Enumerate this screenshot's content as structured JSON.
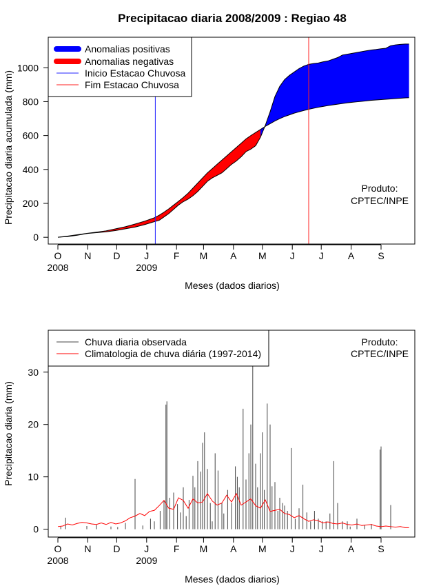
{
  "chart_data": [
    {
      "type": "area",
      "title": "Precipitacao diaria 2008/2009 : Regiao 48",
      "xlabel": "Meses (dados diarios)",
      "ylabel": "Precipitacao diaria acumulada (mm)",
      "x_unit": "days since 2008-10-01",
      "xlim": [
        -10,
        370
      ],
      "ylim": [
        -40,
        1180
      ],
      "yticks": [
        0,
        200,
        400,
        600,
        800,
        1000
      ],
      "month_ticks": [
        0,
        31,
        61,
        92,
        123,
        151,
        182,
        212,
        243,
        273,
        304,
        335
      ],
      "month_labels": [
        "O",
        "N",
        "D",
        "J",
        "F",
        "M",
        "A",
        "M",
        "J",
        "J",
        "A",
        "S"
      ],
      "year_labels": [
        {
          "x": 0,
          "label": "2008"
        },
        {
          "x": 92,
          "label": "2009"
        }
      ],
      "observed": {
        "x": [
          0,
          10,
          20,
          30,
          40,
          50,
          60,
          70,
          80,
          90,
          100,
          105,
          110,
          115,
          120,
          125,
          130,
          135,
          140,
          145,
          150,
          155,
          160,
          165,
          170,
          175,
          180,
          185,
          190,
          195,
          200,
          205,
          210,
          215,
          220,
          225,
          230,
          235,
          240,
          245,
          250,
          255,
          260,
          265,
          270,
          275,
          280,
          285,
          290,
          295,
          300,
          305,
          310,
          315,
          320,
          325,
          330,
          335,
          340,
          345,
          350,
          355,
          360,
          364
        ],
        "y": [
          0,
          4,
          12,
          22,
          27,
          32,
          40,
          50,
          60,
          75,
          92,
          100,
          120,
          140,
          165,
          190,
          210,
          225,
          245,
          270,
          300,
          330,
          350,
          365,
          380,
          405,
          430,
          450,
          475,
          505,
          520,
          540,
          590,
          660,
          740,
          830,
          890,
          930,
          955,
          975,
          995,
          1010,
          1020,
          1025,
          1028,
          1035,
          1040,
          1050,
          1060,
          1075,
          1080,
          1085,
          1090,
          1095,
          1100,
          1105,
          1108,
          1112,
          1115,
          1130,
          1135,
          1138,
          1140,
          1140
        ]
      },
      "climatology": {
        "x": [
          0,
          10,
          20,
          30,
          40,
          50,
          60,
          70,
          80,
          90,
          100,
          105,
          110,
          115,
          120,
          125,
          130,
          135,
          140,
          145,
          150,
          155,
          160,
          165,
          170,
          175,
          180,
          185,
          190,
          195,
          200,
          205,
          210,
          215,
          220,
          225,
          230,
          235,
          240,
          245,
          250,
          255,
          260,
          265,
          270,
          275,
          280,
          285,
          290,
          295,
          300,
          305,
          310,
          315,
          320,
          325,
          330,
          335,
          340,
          345,
          350,
          355,
          360,
          364
        ],
        "y": [
          0,
          7,
          15,
          23,
          30,
          38,
          50,
          62,
          78,
          95,
          115,
          130,
          148,
          168,
          190,
          212,
          235,
          260,
          290,
          320,
          350,
          380,
          405,
          430,
          455,
          480,
          505,
          530,
          555,
          580,
          600,
          618,
          636,
          654,
          670,
          686,
          700,
          712,
          722,
          732,
          740,
          748,
          755,
          761,
          767,
          772,
          777,
          781,
          785,
          789,
          793,
          796,
          799,
          802,
          805,
          808,
          810,
          812,
          814,
          816,
          818,
          820,
          822,
          823
        ]
      },
      "vlines": [
        {
          "x": 101,
          "label": "Inicio Estacao Chuvosa",
          "color": "#2222ff"
        },
        {
          "x": 260,
          "label": "Fim Estacao Chuvosa",
          "color": "#ff2222"
        }
      ],
      "legend": {
        "position": "top-left",
        "entries": [
          {
            "label": "Anomalias positivas",
            "color": "#0000ff",
            "kind": "thick"
          },
          {
            "label": "Anomalias negativas",
            "color": "#ff0000",
            "kind": "thick"
          },
          {
            "label": "Inicio Estacao Chuvosa",
            "color": "#2222ff",
            "kind": "thin"
          },
          {
            "label": "Fim Estacao Chuvosa",
            "color": "#ff2222",
            "kind": "thin"
          }
        ]
      },
      "annotation": [
        "Produto:",
        "CPTEC/INPE"
      ]
    },
    {
      "type": "bar",
      "xlabel": "Meses (dados diarios)",
      "ylabel": "Precipitacao diaria (mm)",
      "x_unit": "days since 2008-10-01",
      "xlim": [
        -10,
        370
      ],
      "ylim": [
        -1.5,
        38
      ],
      "yticks": [
        0,
        10,
        20,
        30
      ],
      "month_ticks": [
        0,
        31,
        61,
        92,
        123,
        151,
        182,
        212,
        243,
        273,
        304,
        335
      ],
      "month_labels": [
        "O",
        "N",
        "D",
        "J",
        "F",
        "M",
        "A",
        "M",
        "J",
        "J",
        "A",
        "S"
      ],
      "year_labels": [
        {
          "x": 0,
          "label": "2008"
        },
        {
          "x": 92,
          "label": "2009"
        }
      ],
      "series": [
        {
          "name": "Chuva diaria observada",
          "color": "#444444",
          "kind": "bars",
          "x": [
            3,
            8,
            30,
            40,
            55,
            62,
            70,
            80,
            88,
            96,
            100,
            106,
            110,
            112,
            113,
            116,
            120,
            124,
            127,
            130,
            133,
            136,
            140,
            142,
            145,
            148,
            150,
            152,
            155,
            158,
            160,
            163,
            166,
            170,
            172,
            176,
            180,
            184,
            186,
            188,
            192,
            195,
            198,
            200,
            202,
            205,
            207,
            210,
            212,
            214,
            217,
            220,
            222,
            225,
            228,
            230,
            233,
            235,
            238,
            242,
            246,
            250,
            254,
            258,
            262,
            266,
            270,
            274,
            278,
            282,
            286,
            290,
            295,
            300,
            303,
            310,
            318,
            325,
            334,
            335,
            345
          ],
          "y": [
            0.5,
            2.2,
            0.6,
            0.8,
            0.5,
            0.4,
            1.2,
            9.6,
            0.7,
            2.0,
            1.5,
            3.5,
            5.5,
            23.8,
            24.4,
            6.0,
            7.0,
            4.8,
            3.2,
            8.0,
            2.5,
            5.6,
            10.2,
            8.0,
            13.0,
            11.0,
            16.5,
            18.5,
            11.5,
            5.0,
            1.5,
            14.5,
            11.2,
            5.0,
            3.0,
            7.5,
            5.0,
            12.0,
            10.0,
            8.0,
            23.0,
            9.5,
            14.5,
            20.0,
            31.5,
            12.5,
            8.0,
            14.5,
            18.5,
            7.5,
            24.0,
            20.0,
            8.2,
            9.0,
            3.5,
            6.0,
            5.0,
            4.5,
            3.5,
            15.5,
            2.0,
            4.0,
            8.5,
            3.2,
            1.5,
            3.5,
            2.0,
            1.5,
            1.5,
            3.0,
            13.0,
            5.0,
            1.5,
            1.5,
            0.5,
            2.0,
            0.8,
            1.0,
            15.2,
            15.8,
            4.6
          ]
        },
        {
          "name": "Climatologia de chuva diária (1997-2014)",
          "color": "#ff0000",
          "kind": "line",
          "x": [
            0,
            5,
            10,
            15,
            20,
            25,
            30,
            35,
            40,
            45,
            50,
            55,
            60,
            65,
            70,
            75,
            80,
            85,
            90,
            95,
            100,
            105,
            110,
            115,
            120,
            125,
            130,
            135,
            140,
            145,
            150,
            155,
            160,
            165,
            170,
            175,
            180,
            185,
            190,
            195,
            200,
            205,
            210,
            215,
            220,
            225,
            230,
            235,
            240,
            245,
            250,
            255,
            260,
            265,
            270,
            275,
            280,
            285,
            290,
            295,
            300,
            305,
            310,
            315,
            320,
            325,
            330,
            335,
            340,
            345,
            350,
            355,
            360,
            364
          ],
          "y": [
            0.5,
            0.6,
            1.0,
            0.8,
            1.1,
            1.3,
            1.2,
            1.0,
            0.9,
            1.2,
            0.9,
            1.3,
            1.0,
            1.2,
            1.6,
            2.2,
            2.5,
            3.0,
            2.6,
            3.4,
            3.6,
            4.5,
            5.5,
            4.0,
            3.8,
            6.0,
            5.5,
            4.0,
            5.8,
            5.0,
            5.2,
            6.8,
            5.4,
            4.6,
            5.0,
            6.5,
            5.2,
            6.8,
            4.6,
            5.2,
            5.8,
            4.5,
            4.0,
            5.6,
            3.4,
            3.6,
            3.8,
            3.0,
            2.8,
            2.2,
            2.6,
            2.0,
            1.5,
            1.8,
            1.6,
            1.2,
            1.4,
            1.1,
            1.0,
            1.2,
            0.9,
            0.8,
            1.0,
            0.7,
            0.8,
            0.9,
            0.6,
            0.5,
            0.6,
            0.5,
            0.4,
            0.5,
            0.3,
            0.3
          ]
        }
      ],
      "legend": {
        "position": "top-left"
      },
      "annotation": [
        "Produto:",
        "CPTEC/INPE"
      ]
    }
  ]
}
